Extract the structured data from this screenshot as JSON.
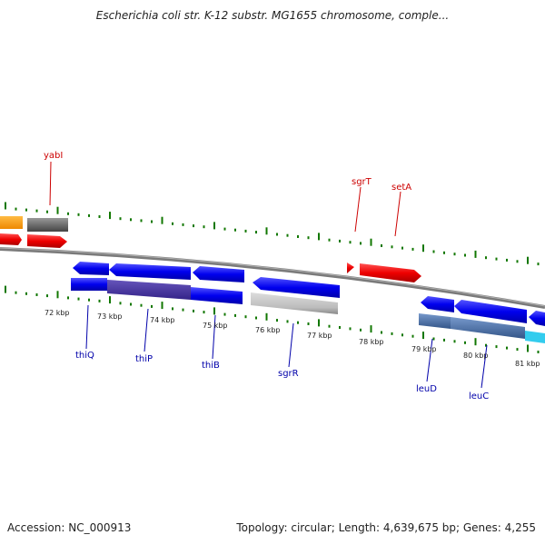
{
  "header": {
    "title": "Escherichia coli str. K-12 substr. MG1655 chromosome, comple..."
  },
  "footer": {
    "accession": "Accession: NC_000913",
    "stats": "Topology: circular; Length: 4,639,675 bp; Genes: 4,255"
  },
  "scale": {
    "ticks": [
      "72 kbp",
      "73 kbp",
      "74 kbp",
      "75 kbp",
      "76 kbp",
      "77 kbp",
      "78 kbp",
      "79 kbp",
      "80 kbp",
      "81 kbp"
    ]
  },
  "genes_forward": [
    "yabI",
    "sgrT",
    "setA"
  ],
  "genes_reverse": [
    "thiQ",
    "thiP",
    "thiB",
    "sgrR",
    "leuD",
    "leuC"
  ],
  "colors": {
    "forward_label": "#cc0000",
    "reverse_label": "#0000aa",
    "cds_blue": "#0000ee",
    "cds_red": "#ee0000",
    "tick_green": "#117700",
    "backbone": "#808080"
  }
}
